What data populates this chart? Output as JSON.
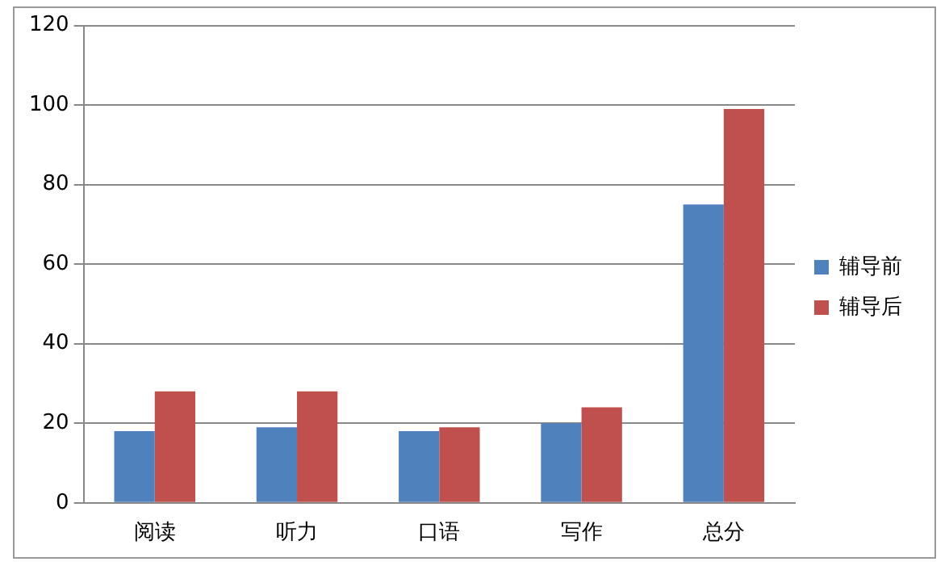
{
  "chart_data": {
    "type": "bar",
    "categories": [
      "阅读",
      "听力",
      "口语",
      "写作",
      "总分"
    ],
    "series": [
      {
        "name": "辅导前",
        "color": "#4f81bd",
        "values": [
          18,
          19,
          18,
          20,
          75
        ]
      },
      {
        "name": "辅导后",
        "color": "#c0504d",
        "values": [
          28,
          28,
          19,
          24,
          99
        ]
      }
    ],
    "ylim": [
      0,
      120
    ],
    "yticks": [
      0,
      20,
      40,
      60,
      80,
      100,
      120
    ],
    "grid": "y",
    "legend": "right"
  }
}
